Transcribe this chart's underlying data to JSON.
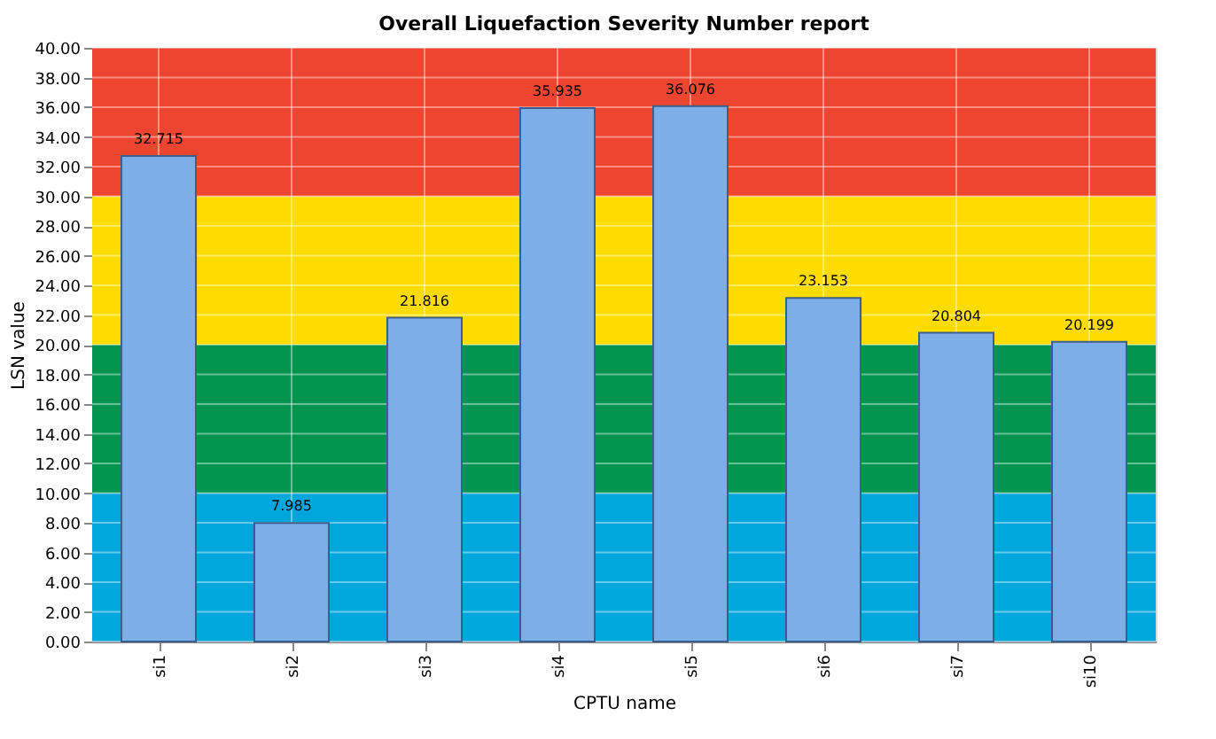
{
  "chart_data": {
    "type": "bar",
    "title": "Overall Liquefaction Severity Number report",
    "xlabel": "CPTU name",
    "ylabel": "LSN value",
    "categories": [
      "si1",
      "si2",
      "si3",
      "si4",
      "si5",
      "si6",
      "si7",
      "si10"
    ],
    "values": [
      32.715,
      7.985,
      21.816,
      35.935,
      36.076,
      23.153,
      20.804,
      20.199
    ],
    "color": "#7eaee8",
    "data_labels": true,
    "grid": true,
    "ylim": [
      0,
      40
    ],
    "yticks": [
      {
        "value": 0,
        "label": "0.00"
      },
      {
        "value": 2,
        "label": "2.00"
      },
      {
        "value": 4,
        "label": "4.00"
      },
      {
        "value": 6,
        "label": "6.00"
      },
      {
        "value": 8,
        "label": "8.00"
      },
      {
        "value": 10,
        "label": "10.00"
      },
      {
        "value": 12,
        "label": "12.00"
      },
      {
        "value": 14,
        "label": "14.00"
      },
      {
        "value": 16,
        "label": "16.00"
      },
      {
        "value": 18,
        "label": "18.00"
      },
      {
        "value": 20,
        "label": "20.00"
      },
      {
        "value": 22,
        "label": "22.00"
      },
      {
        "value": 24,
        "label": "24.00"
      },
      {
        "value": 26,
        "label": "26.00"
      },
      {
        "value": 28,
        "label": "28.00"
      },
      {
        "value": 30,
        "label": "30.00"
      },
      {
        "value": 32,
        "label": "32.00"
      },
      {
        "value": 34,
        "label": "34.00"
      },
      {
        "value": 36,
        "label": "36.00"
      },
      {
        "value": 38,
        "label": "38.00"
      },
      {
        "value": 40,
        "label": "40.00"
      }
    ],
    "bands": [
      {
        "axis": "y",
        "from": 0,
        "to": 10,
        "color": "#00a6dc"
      },
      {
        "axis": "y",
        "from": 10,
        "to": 20,
        "color": "#009650"
      },
      {
        "axis": "y",
        "from": 20,
        "to": 30,
        "color": "#ffdc00"
      },
      {
        "axis": "y",
        "from": 30,
        "to": 40,
        "color": "#ee4530"
      }
    ]
  }
}
